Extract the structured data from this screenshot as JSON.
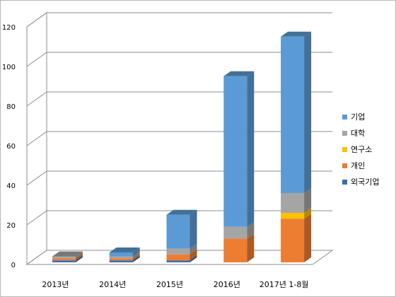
{
  "chart_data": {
    "type": "bar",
    "stacked": true,
    "three_d": true,
    "categories": [
      "2013년",
      "2014년",
      "2015년",
      "2016년",
      "2017년 1-8월"
    ],
    "series": [
      {
        "name": "외국기업",
        "color": "#3f6eab",
        "values": [
          1,
          1,
          1,
          0,
          0
        ]
      },
      {
        "name": "개인",
        "color": "#ed7d31",
        "values": [
          1,
          1,
          3,
          12,
          22
        ]
      },
      {
        "name": "연구소",
        "color": "#ffc000",
        "values": [
          0,
          0,
          0,
          0,
          3
        ]
      },
      {
        "name": "대학",
        "color": "#a5a5a5",
        "values": [
          1,
          1,
          3,
          6,
          10
        ]
      },
      {
        "name": "기업",
        "color": "#5b9bd5",
        "values": [
          0,
          2,
          17,
          76,
          79
        ]
      }
    ],
    "yticks": [
      0,
      20,
      40,
      60,
      80,
      100,
      120
    ],
    "ylim": [
      0,
      120
    ],
    "grid": true,
    "legend_position": "right"
  }
}
